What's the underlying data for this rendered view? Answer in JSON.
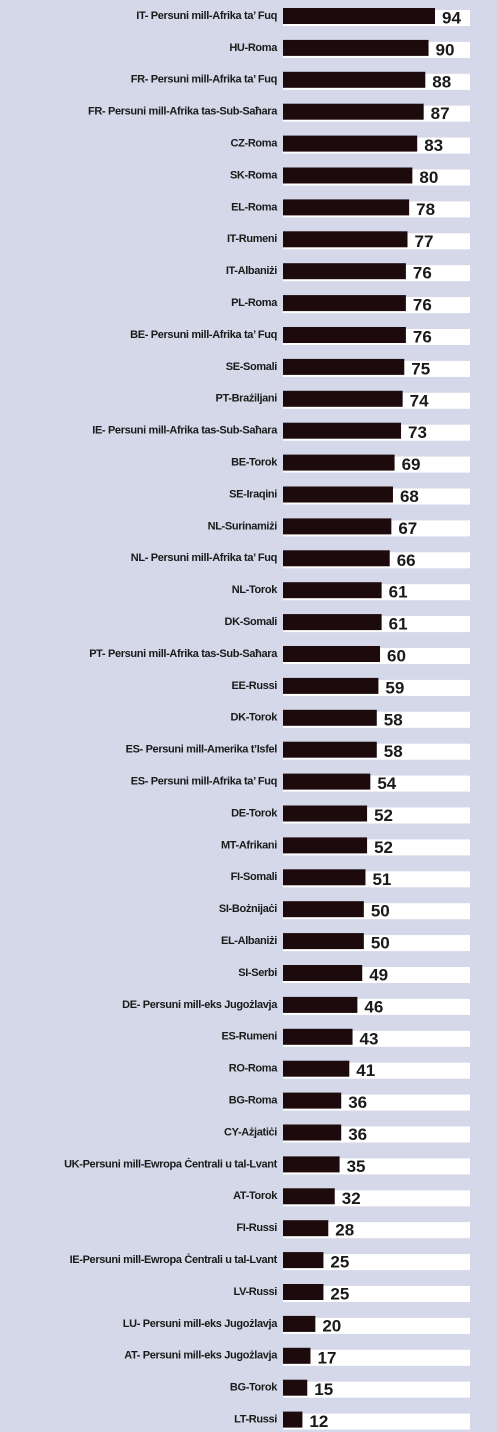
{
  "chart_data": {
    "type": "bar",
    "orientation": "horizontal",
    "color": "#1c0a0c",
    "categories": [
      "IT- Persuni mill-Afrika ta’ Fuq",
      "HU-Roma",
      "FR- Persuni mill-Afrika ta’ Fuq",
      "FR- Persuni mill-Afrika tas-Sub-Saħara",
      "CZ-Roma",
      "SK-Roma",
      "EL-Roma",
      "IT-Rumeni",
      "IT-Albaniżi",
      "PL-Roma",
      "BE- Persuni mill-Afrika ta’ Fuq",
      "SE-Somali",
      "PT-Brażiljani",
      "IE- Persuni mill-Afrika tas-Sub-Saħara",
      "BE-Torok",
      "SE-Iraqini",
      "NL-Surinamiżi",
      "NL- Persuni mill-Afrika ta’ Fuq",
      "NL-Torok",
      "DK-Somali",
      "PT- Persuni mill-Afrika tas-Sub-Saħara",
      "EE-Russi",
      "DK-Torok",
      "ES- Persuni mill-Amerika t’Isfel",
      "ES- Persuni mill-Afrika ta’ Fuq",
      "DE-Torok",
      "MT-Afrikani",
      "FI-Somali",
      "SI-Bożnijaċi",
      "EL-Albaniżi",
      "SI-Serbi",
      "DE- Persuni mill-eks Jugożlavja",
      "ES-Rumeni",
      "RO-Roma",
      "BG-Roma",
      "CY-Ażjatiċi",
      "UK-Persuni mill-Ewropa Ċentrali u tal-Lvant",
      "AT-Torok",
      "FI-Russi",
      "IE-Persuni mill-Ewropa Ċentrali u tal-Lvant",
      "LV-Russi",
      "LU- Persuni mill-eks Jugożlavja",
      "AT- Persuni mill-eks Jugożlavja",
      "BG-Torok",
      "LT-Russi"
    ],
    "values": [
      94,
      90,
      88,
      87,
      83,
      80,
      78,
      77,
      76,
      76,
      76,
      75,
      74,
      73,
      69,
      68,
      67,
      66,
      61,
      61,
      60,
      59,
      58,
      58,
      54,
      52,
      52,
      51,
      50,
      50,
      49,
      46,
      43,
      41,
      36,
      36,
      35,
      32,
      28,
      25,
      25,
      20,
      17,
      15,
      12
    ]
  }
}
